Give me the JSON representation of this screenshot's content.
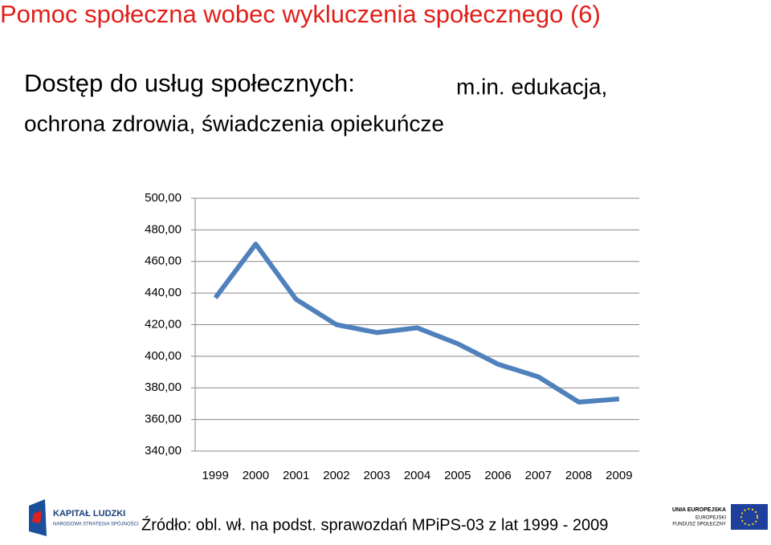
{
  "header": {
    "title": "Pomoc społeczna wobec wykluczenia społecznego (6)",
    "subtitle": [
      "Dostęp do usług społecznych:",
      "m.in. edukacja,",
      "ochrona zdrowia, świadczenia opiekuńcze"
    ]
  },
  "chart_data": {
    "type": "line",
    "categories": [
      "1999",
      "2000",
      "2001",
      "2002",
      "2003",
      "2004",
      "2005",
      "2006",
      "2007",
      "2008",
      "2009"
    ],
    "values": [
      437,
      471,
      436,
      420,
      415,
      418,
      408,
      395,
      387,
      371,
      373
    ],
    "color": "#4f81bd",
    "ylim": [
      340,
      500
    ],
    "yticks": [
      {
        "value": 340,
        "label": "340,00"
      },
      {
        "value": 360,
        "label": "360,00"
      },
      {
        "value": 380,
        "label": "380,00"
      },
      {
        "value": 400,
        "label": "400,00"
      },
      {
        "value": 420,
        "label": "420,00"
      },
      {
        "value": 440,
        "label": "440,00"
      },
      {
        "value": 460,
        "label": "460,00"
      },
      {
        "value": 480,
        "label": "480,00"
      },
      {
        "value": 500,
        "label": "500,00"
      }
    ],
    "grid": true
  },
  "footer": {
    "source": "Źródło: obl. wł. na podst. sprawozdań MPiPS-03  z lat 1999 - 2009",
    "logo_left": [
      "KAPITAŁ LUDZKI",
      "NARODOWA STRATEGIA SPÓJNOŚCI"
    ],
    "logo_right": [
      "UNIA EUROPEJSKA",
      "EUROPEJSKI",
      "FUNDUSZ SPOŁECZNY"
    ]
  }
}
